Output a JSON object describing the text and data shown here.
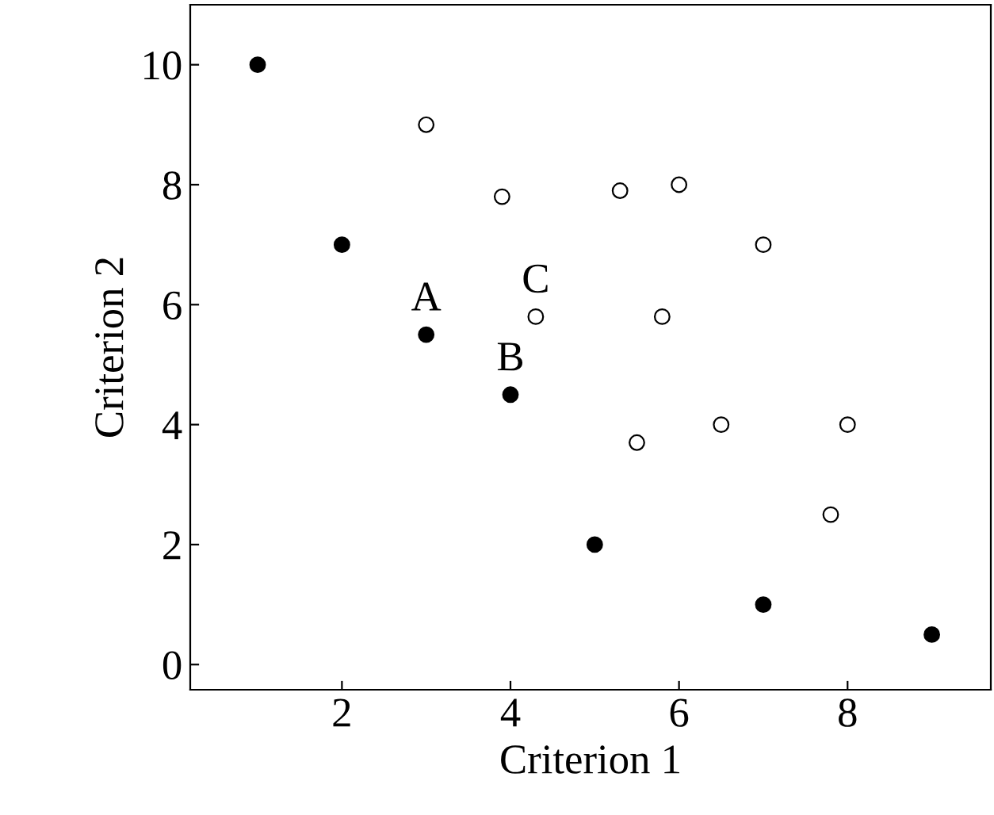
{
  "chart_data": {
    "type": "scatter",
    "xlabel": "Criterion 1",
    "ylabel": "Criterion 2",
    "xlim": [
      0.2,
      9.7
    ],
    "ylim": [
      -0.42,
      11.0
    ],
    "xticks": [
      2,
      4,
      6,
      8
    ],
    "yticks": [
      0,
      2,
      4,
      6,
      8,
      10
    ],
    "grid": false,
    "legend": false,
    "marker": "circle",
    "series": [
      {
        "color": "#000000",
        "x": [
          1,
          2,
          3,
          4,
          5,
          7,
          9
        ],
        "values": [
          10,
          7,
          5.5,
          4.5,
          2,
          1,
          0.5
        ]
      },
      {
        "color": "#ffffff",
        "x": [
          3,
          3.9,
          5.3,
          6,
          7,
          4.3,
          5.8,
          5.5,
          6.5,
          8,
          7.8
        ],
        "values": [
          9,
          7.8,
          7.9,
          8,
          7,
          5.8,
          5.8,
          3.7,
          4,
          4,
          2.5
        ]
      }
    ],
    "annotations": [
      {
        "text": "A",
        "x": 3,
        "y": 5.5
      },
      {
        "text": "B",
        "x": 4,
        "y": 4.5
      },
      {
        "text": "C",
        "x": 4.3,
        "y": 5.8
      }
    ]
  }
}
